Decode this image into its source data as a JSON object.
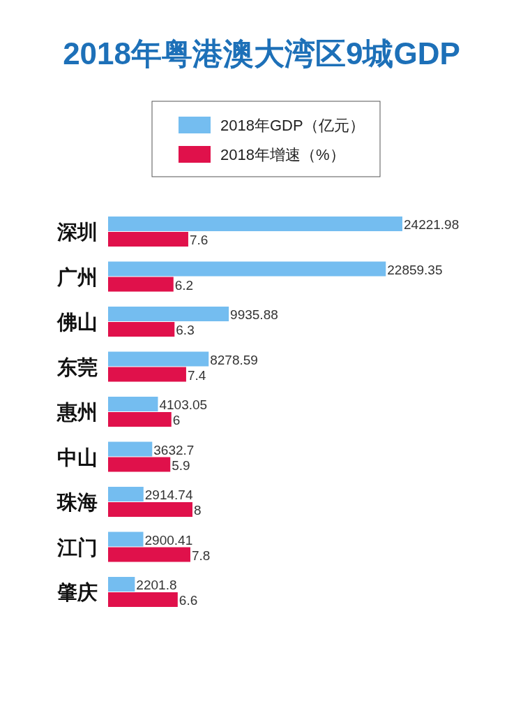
{
  "chart_data": [
    {
      "type": "bar",
      "orientation": "horizontal",
      "title": "2018年粤港澳大湾区9城GDP",
      "categories": [
        "深圳",
        "广州",
        "佛山",
        "东莞",
        "惠州",
        "中山",
        "珠海",
        "江门",
        "肇庆"
      ],
      "series": [
        {
          "name": "2018年GDP（亿元）",
          "color": "#74bdf0",
          "values": [
            24221.98,
            22859.35,
            9935.88,
            8278.59,
            4103.05,
            3632.7,
            2914.74,
            2900.41,
            2201.8
          ]
        }
      ],
      "data_labels": true,
      "legend": "top"
    },
    {
      "type": "bar",
      "orientation": "horizontal",
      "categories": [
        null,
        null,
        null,
        null,
        null,
        null,
        null,
        null,
        null
      ],
      "series": [
        {
          "name": "2018年增速（%）",
          "color": "#e0114b",
          "values": [
            7.6,
            6.2,
            6.3,
            7.4,
            6,
            5.9,
            8,
            7.8,
            6.6
          ]
        }
      ],
      "data_labels": true,
      "legend": "top"
    }
  ]
}
